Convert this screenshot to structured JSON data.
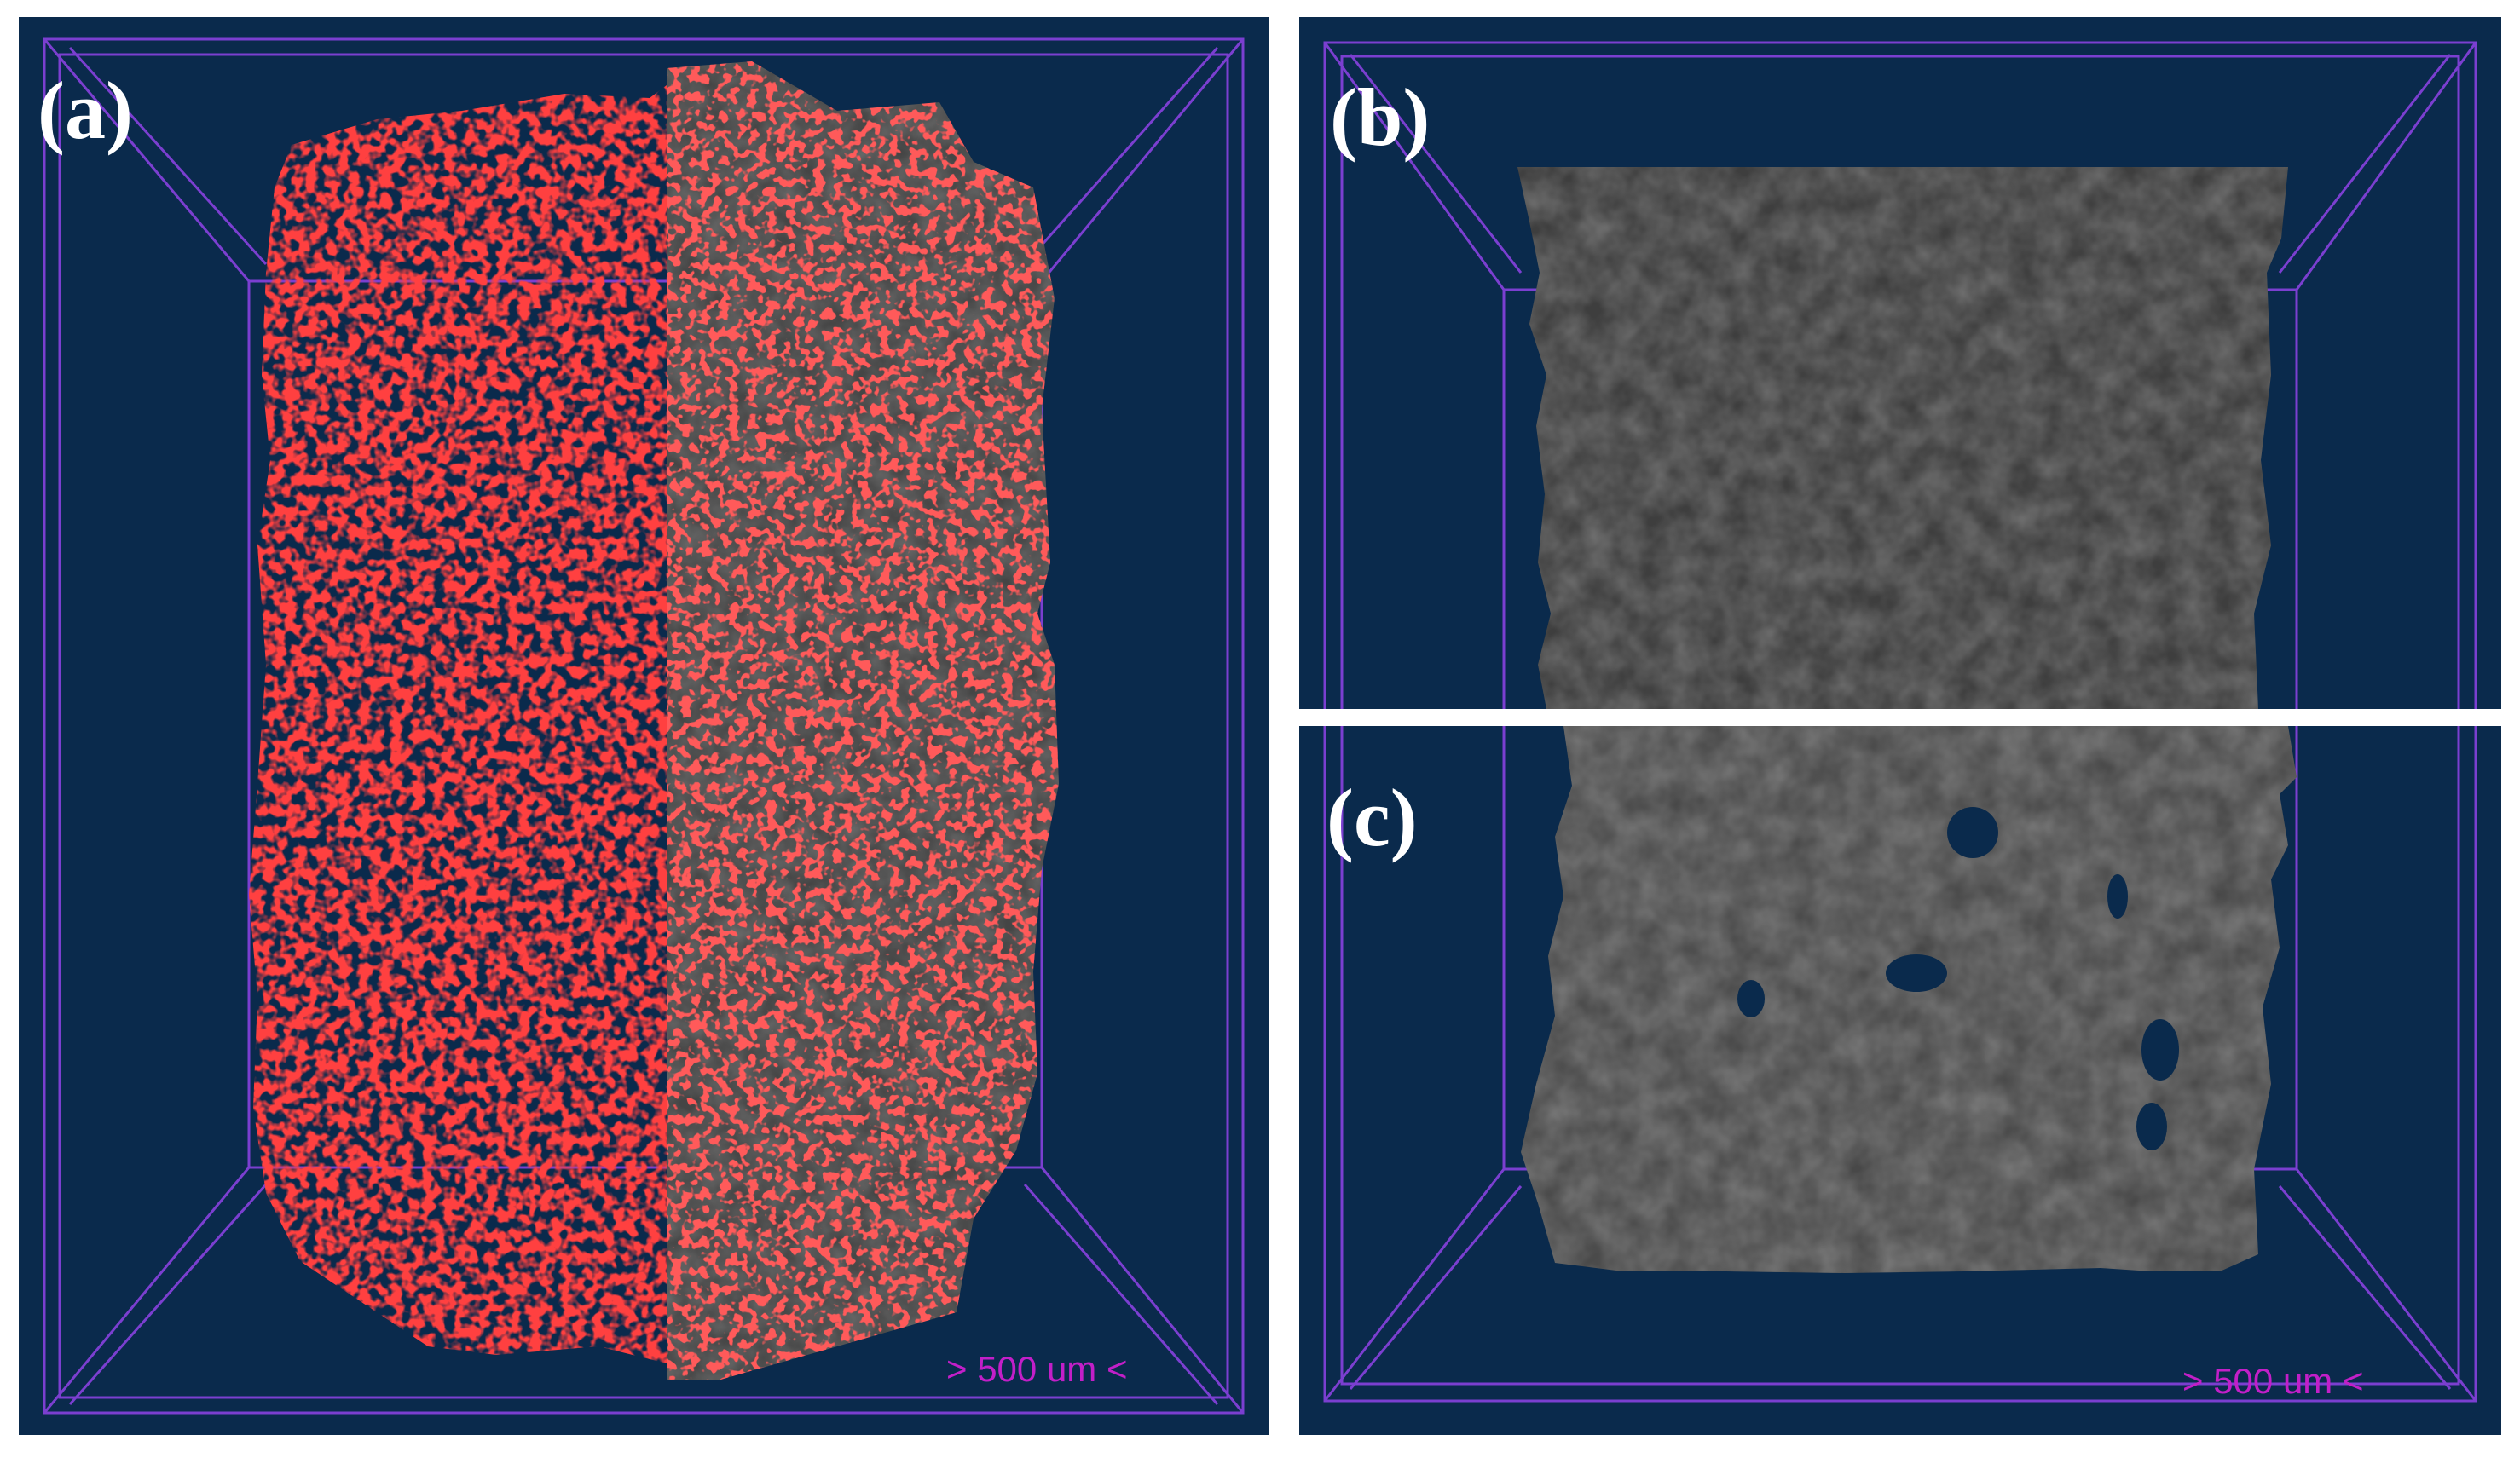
{
  "panels": {
    "a": {
      "label": "(a)",
      "scale_text": "> 500 um <"
    },
    "b": {
      "label": "(b)"
    },
    "c": {
      "label": "(c)",
      "scale_text": "> 500 um <"
    }
  },
  "colors": {
    "background": "#0a2a4c",
    "frame_line": "#7b3fd0",
    "scale_text": "#c21fc8",
    "pore_red": "#ff1a1a",
    "solid_gray": "#454545"
  }
}
